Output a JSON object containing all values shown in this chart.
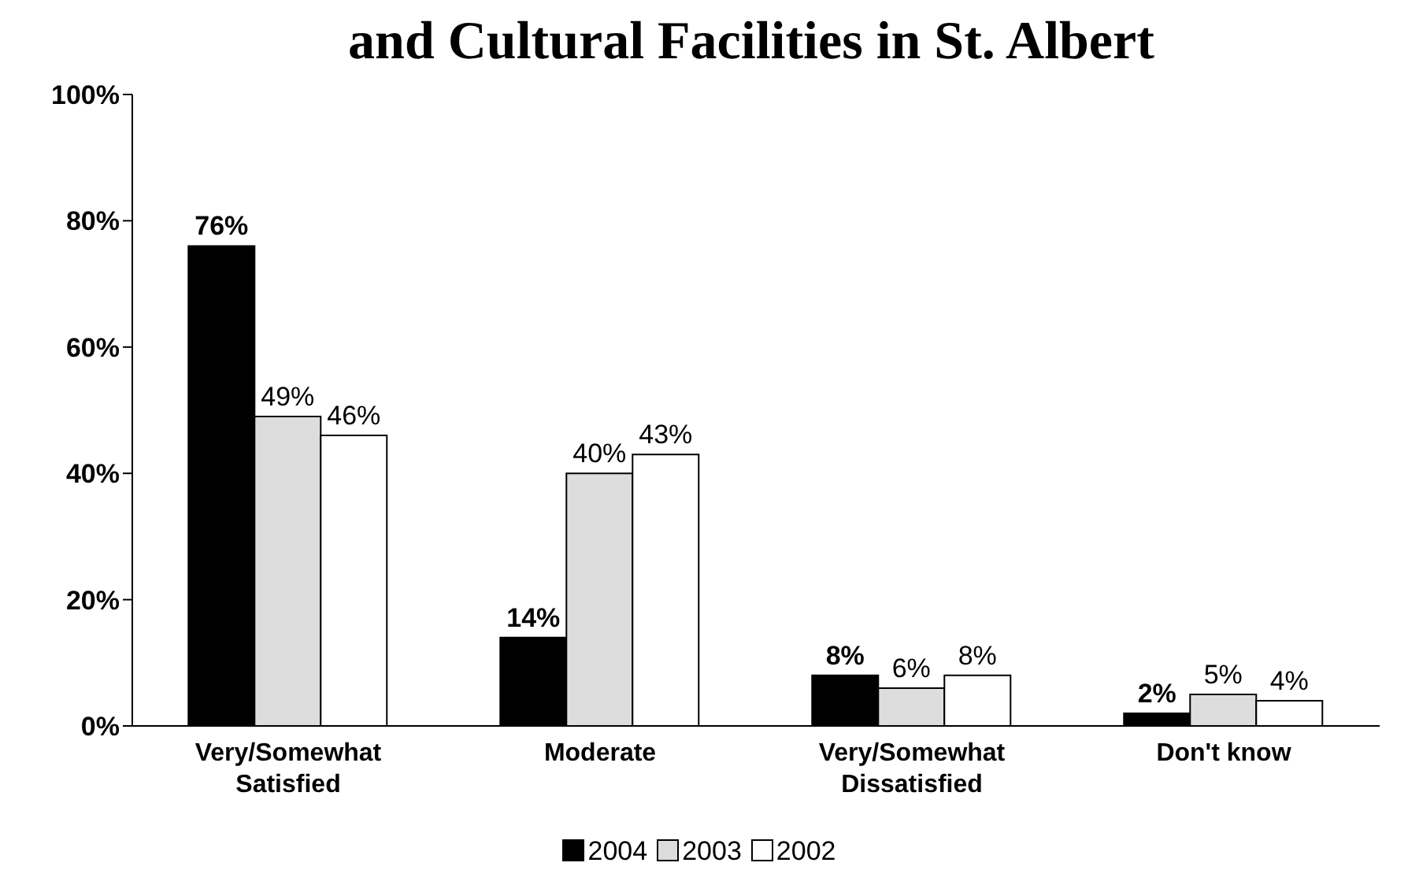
{
  "chart_data": {
    "type": "bar",
    "title": "and Cultural Facilities in St. Albert",
    "categories": [
      "Very/Somewhat\nSatisfied",
      "Moderate",
      "Very/Somewhat\nDissatisfied",
      "Don't know"
    ],
    "series": [
      {
        "name": "2004",
        "color": "#000000",
        "values": [
          76,
          14,
          8,
          2
        ],
        "value_labels": [
          "76%",
          "14%",
          "8%",
          "2%"
        ]
      },
      {
        "name": "2003",
        "color": "#dddddd",
        "values": [
          49,
          40,
          6,
          5
        ],
        "value_labels": [
          "49%",
          "40%",
          "6%",
          "5%"
        ]
      },
      {
        "name": "2002",
        "color": "#ffffff",
        "values": [
          46,
          43,
          8,
          4
        ],
        "value_labels": [
          "46%",
          "43%",
          "8%",
          "4%"
        ]
      }
    ],
    "ylim": [
      0,
      100
    ],
    "yticks": [
      {
        "value": 0,
        "label": "0%"
      },
      {
        "value": 20,
        "label": "20%"
      },
      {
        "value": 40,
        "label": "40%"
      },
      {
        "value": 60,
        "label": "60%"
      },
      {
        "value": 80,
        "label": "80%"
      },
      {
        "value": 100,
        "label": "100%"
      }
    ],
    "grid": false,
    "legend": "bottom"
  }
}
